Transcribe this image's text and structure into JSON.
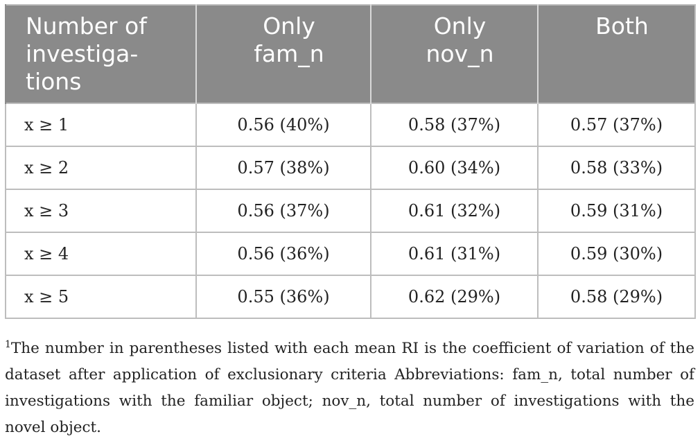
{
  "table": {
    "headers": [
      "Number of investiga-tions",
      "Only fam_n",
      "Only nov_n",
      "Both"
    ],
    "header_lines": [
      [
        "Number of",
        "investiga-",
        "tions"
      ],
      [
        "Only",
        "fam_n"
      ],
      [
        "Only",
        "nov_n"
      ],
      [
        "Both"
      ]
    ],
    "rows": [
      [
        "x ≥ 1",
        "0.56 (40%)",
        "0.58 (37%)",
        "0.57 (37%)"
      ],
      [
        "x ≥ 2",
        "0.57 (38%)",
        "0.60 (34%)",
        "0.58 (33%)"
      ],
      [
        "x ≥ 3",
        "0.56 (37%)",
        "0.61 (32%)",
        "0.59 (31%)"
      ],
      [
        "x ≥ 4",
        "0.56 (36%)",
        "0.61 (31%)",
        "0.59 (30%)"
      ],
      [
        "x ≥ 5",
        "0.55 (36%)",
        "0.62 (29%)",
        "0.58 (29%)"
      ]
    ]
  },
  "footnote": {
    "marker": "1",
    "text": "The number in parentheses listed with each mean RI is the coefficient of variation of the dataset after application of exclusionary criteria Abbreviations: fam_n, total number of investigations with the familiar object; nov_n, total number of investigations with the novel object."
  },
  "colors": {
    "header_bg": "#8a8a8a",
    "header_text": "#ffffff",
    "grid": "#bdbdbd"
  }
}
